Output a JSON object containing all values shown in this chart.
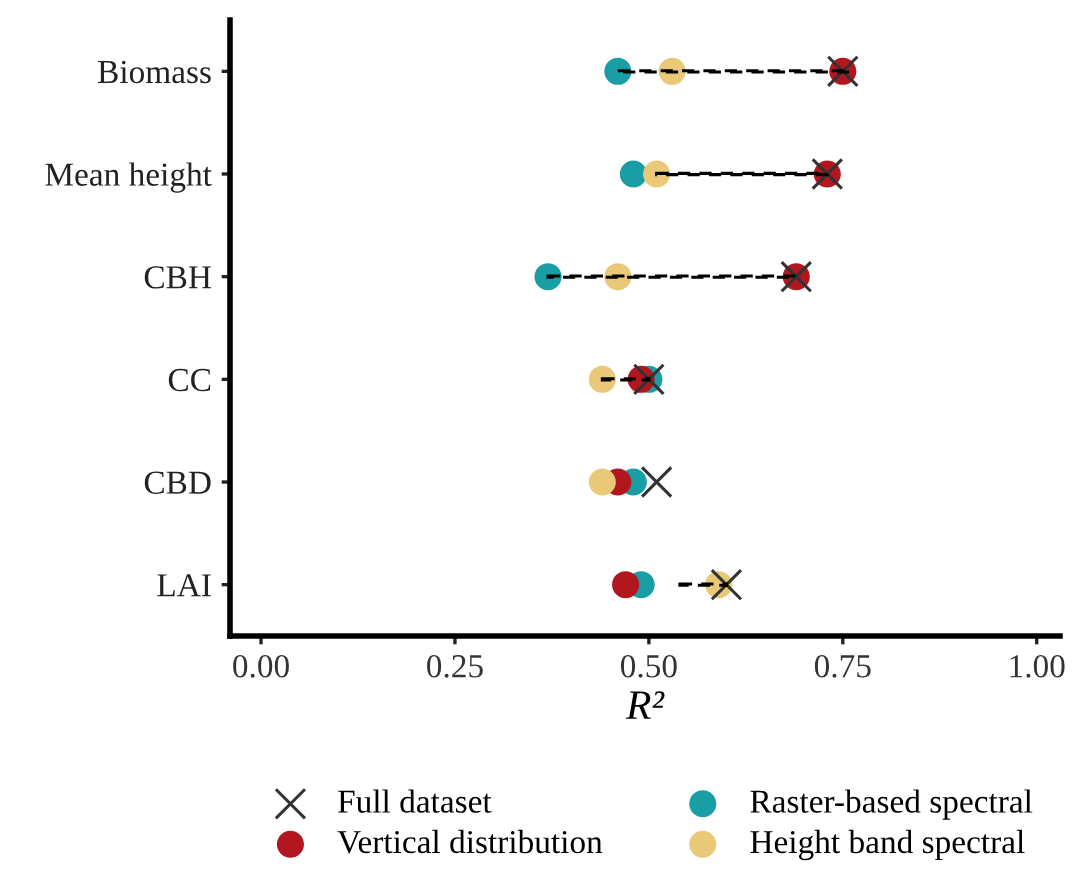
{
  "chart_data": {
    "type": "scatter",
    "orientation": "horizontal",
    "categories": [
      "Biomass",
      "Mean height",
      "CBH",
      "CC",
      "CBD",
      "LAI"
    ],
    "xlabel": "R²",
    "xlim": [
      -0.04,
      1.03
    ],
    "xticks": [
      {
        "value": 0,
        "label": "0.00"
      },
      {
        "value": 0.25,
        "label": "0.25"
      },
      {
        "value": 0.5,
        "label": "0.50"
      },
      {
        "value": 0.75,
        "label": "0.75"
      },
      {
        "value": 1,
        "label": "1.00"
      }
    ],
    "grid": false,
    "legend": "bottom",
    "series": [
      {
        "type": "bar",
        "color": "#000000",
        "line_style": "dashed",
        "base": [
          0.46,
          0.51,
          0.37,
          0.44,
          null,
          0.54
        ],
        "values": [
          0.3,
          0.22,
          0.32,
          0.06,
          null,
          0.06
        ]
      },
      {
        "name": "Full dataset",
        "color": "#333333",
        "marker": "cross",
        "values": [
          0.75,
          0.73,
          0.69,
          0.5,
          0.51,
          0.6
        ]
      },
      {
        "name": "Vertical distribution",
        "color": "#b2161f",
        "marker": "circle",
        "values": [
          0.75,
          0.73,
          0.69,
          0.49,
          0.46,
          0.47
        ]
      },
      {
        "name": "Raster-based spectral",
        "color": "#1a9ea5",
        "marker": "circle",
        "values": [
          0.46,
          0.48,
          0.37,
          0.5,
          0.48,
          0.49
        ]
      },
      {
        "name": "Height band spectral",
        "color": "#e9c877",
        "marker": "circle",
        "values": [
          0.53,
          0.51,
          0.46,
          0.44,
          0.44,
          0.59
        ]
      }
    ]
  }
}
